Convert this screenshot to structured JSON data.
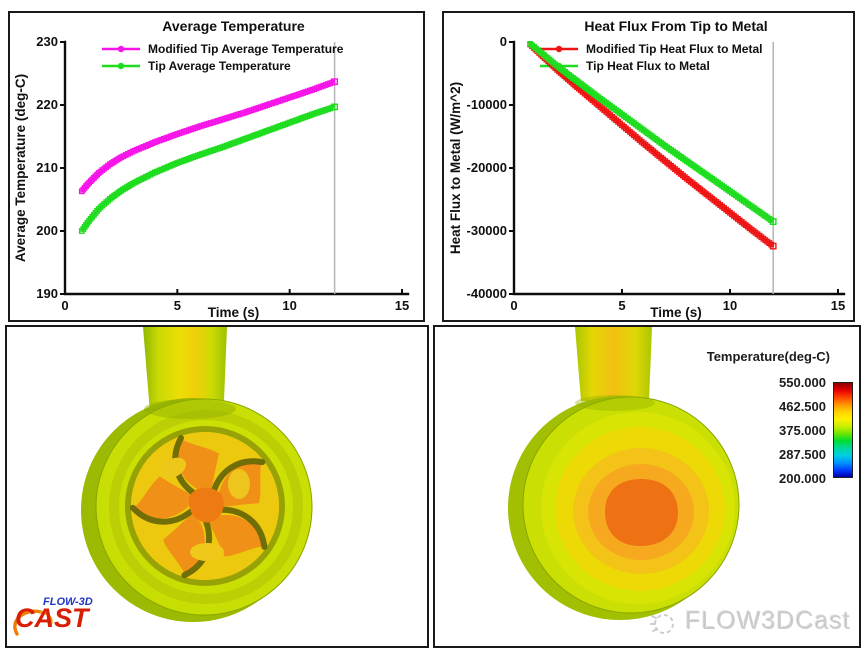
{
  "chart_data": [
    {
      "type": "line",
      "title": "Average Temperature",
      "xlabel": "Time (s)",
      "ylabel": "Average Temperature (deg-C)",
      "xlim": [
        0,
        15
      ],
      "ylim": [
        190,
        230
      ],
      "xticks": [
        0,
        5,
        10,
        15
      ],
      "yticks": [
        190,
        200,
        210,
        220,
        230
      ],
      "grid": false,
      "legend_position": "top-left-inside",
      "cursor_x": 12,
      "cursor_color": "#b5b5b5",
      "series": [
        {
          "name": "Modified Tip Average Temperature",
          "color": "#f714e8",
          "marker": "open-square",
          "x": [
            0.75,
            1,
            1.5,
            2,
            2.5,
            3,
            4,
            5,
            6,
            7,
            8,
            9,
            10,
            11,
            12
          ],
          "y": [
            206.3,
            207.4,
            209.2,
            210.6,
            211.7,
            212.6,
            214.1,
            215.4,
            216.6,
            217.7,
            218.8,
            220.0,
            221.2,
            222.4,
            223.7
          ]
        },
        {
          "name": "Tip Average Temperature",
          "color": "#1edc1e",
          "marker": "open-square",
          "x": [
            0.75,
            1,
            1.5,
            2,
            2.5,
            3,
            4,
            5,
            6,
            7,
            8,
            9,
            10,
            11,
            12
          ],
          "y": [
            200.0,
            201.3,
            203.5,
            205.1,
            206.4,
            207.5,
            209.3,
            210.8,
            212.1,
            213.3,
            214.6,
            215.9,
            217.2,
            218.5,
            219.7
          ]
        }
      ]
    },
    {
      "type": "line",
      "title": "Heat Flux From Tip to Metal",
      "xlabel": "Time (s)",
      "ylabel": "Heat Flux to Metal (W/m^2)",
      "xlim": [
        0,
        15
      ],
      "ylim": [
        -40000,
        0
      ],
      "xticks": [
        0,
        5,
        10,
        15
      ],
      "yticks": [
        0,
        -10000,
        -20000,
        -30000,
        -40000
      ],
      "grid": false,
      "legend_position": "top-left-inside",
      "cursor_x": 12,
      "cursor_color": "#b5b5b5",
      "series": [
        {
          "name": "Modified Tip Heat Flux to Metal",
          "color": "#ee1414",
          "marker": "open-square",
          "x": [
            0.75,
            2,
            3,
            4,
            5,
            6,
            7,
            8,
            9,
            10,
            11,
            12
          ],
          "y": [
            -400,
            -4400,
            -7400,
            -10300,
            -13200,
            -16100,
            -18900,
            -21700,
            -24400,
            -27100,
            -29800,
            -32400
          ]
        },
        {
          "name": "Tip Heat Flux to Metal",
          "color": "#1edc1e",
          "marker": "open-square",
          "x": [
            0.75,
            2,
            3,
            4,
            5,
            6,
            7,
            8,
            9,
            10,
            11,
            12
          ],
          "y": [
            -300,
            -3800,
            -6400,
            -9000,
            -11500,
            -14000,
            -16500,
            -18900,
            -21300,
            -23700,
            -26100,
            -28500
          ]
        }
      ]
    }
  ],
  "colorbar": {
    "title": "Temperature(deg-C)",
    "ticks": [
      "550.000",
      "462.500",
      "375.000",
      "287.500",
      "200.000"
    ],
    "colors_top_to_bottom": [
      "#8c0000",
      "#e60000",
      "#ff4600",
      "#ff9600",
      "#ffd200",
      "#fff000",
      "#c8f000",
      "#6ee600",
      "#00dc32",
      "#00d89b",
      "#00cfe0",
      "#0096ff",
      "#0041ff",
      "#0000ae"
    ]
  },
  "logo": {
    "brand_top": "FLOW-3D",
    "brand_main": "CAST",
    "color_top": "#2036c4",
    "color_main": "#d81e04",
    "swirl_color": "#f07c00"
  },
  "watermark": {
    "text": "FLOW3DCast"
  }
}
